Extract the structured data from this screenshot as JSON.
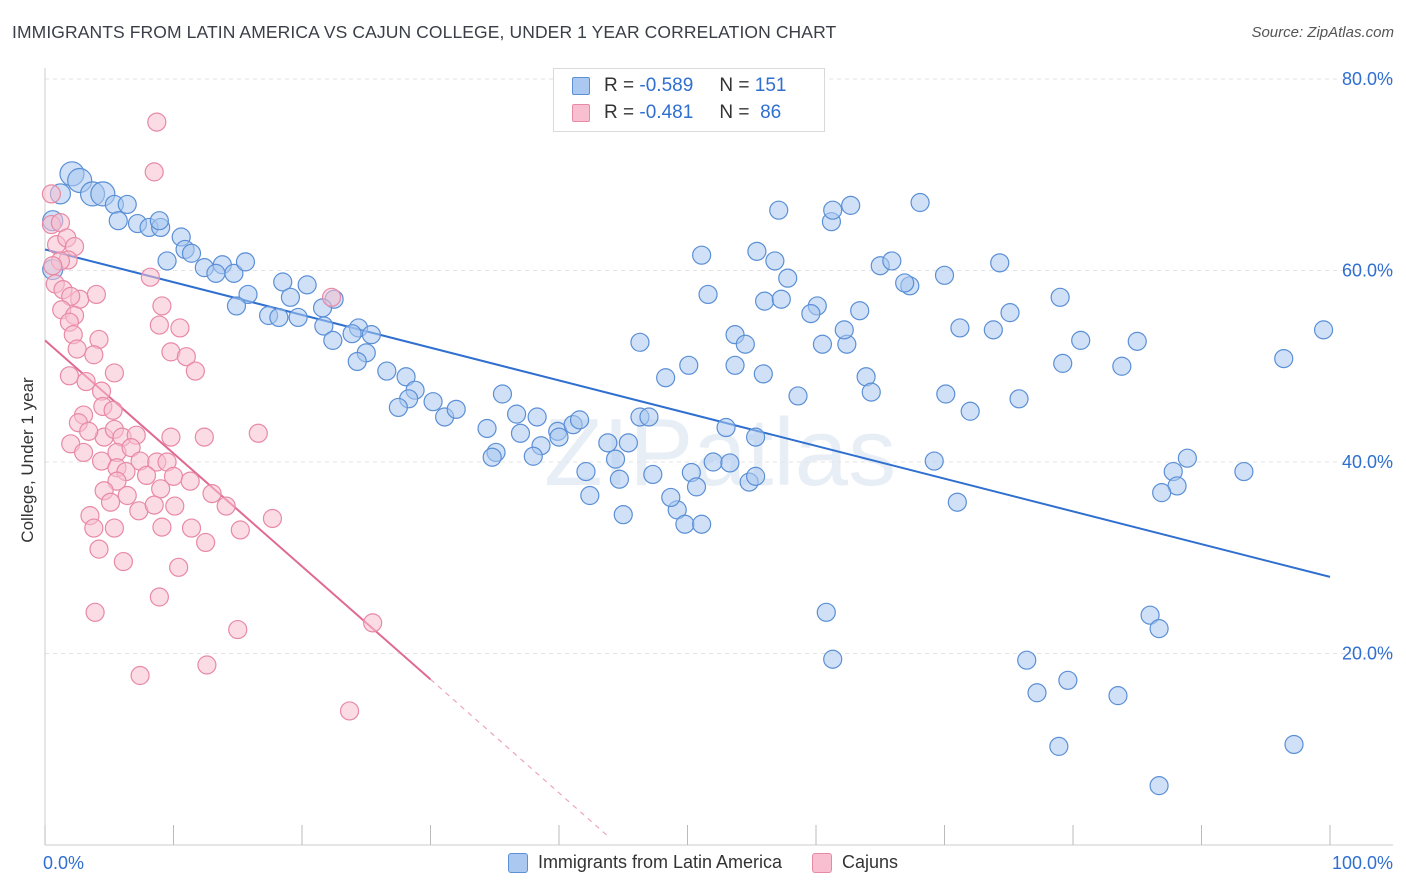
{
  "header": {
    "title": "IMMIGRANTS FROM LATIN AMERICA VS CAJUN COLLEGE, UNDER 1 YEAR CORRELATION CHART",
    "source": "Source: ZipAtlas.com"
  },
  "legend": {
    "rows": [
      {
        "r_label": "R =",
        "r_value": "-0.589",
        "n_label": "N =",
        "n_value": "151"
      },
      {
        "r_label": "R =",
        "r_value": "-0.481",
        "n_label": "N =",
        "n_value": "86"
      }
    ]
  },
  "bottom_legend": [
    "Immigrants from Latin America",
    "Cajuns"
  ],
  "watermark": "ZIPatlas",
  "colors": {
    "blue_fill": "#aac8f0",
    "blue_stroke": "#5b8fd6",
    "blue_line": "#2f6fd0",
    "pink_fill": "#f7bfd0",
    "pink_stroke": "#e889a6",
    "pink_line": "#e06a93",
    "axis_text": "#2f6fd0"
  },
  "chart_data": {
    "type": "scatter",
    "title": "IMMIGRANTS FROM LATIN AMERICA VS CAJUN COLLEGE, UNDER 1 YEAR CORRELATION CHART",
    "xlabel": "",
    "ylabel": "College, Under 1 year",
    "xlim": [
      0,
      100
    ],
    "ylim": [
      0,
      80
    ],
    "x_tick_labels": [
      "0.0%",
      "100.0%"
    ],
    "y_tick_labels": [
      "20.0%",
      "40.0%",
      "60.0%",
      "80.0%"
    ],
    "y_ticks": [
      20,
      40,
      60,
      80
    ],
    "grid": true,
    "series": [
      {
        "name": "Immigrants from Latin America",
        "R": -0.589,
        "N": 151,
        "trend": {
          "x": [
            0,
            100
          ],
          "y": [
            62.2,
            28.0
          ]
        },
        "points": [
          [
            0.6,
            65.2
          ],
          [
            0.6,
            60.1
          ],
          [
            1.2,
            68.0
          ],
          [
            2.1,
            70.1
          ],
          [
            2.7,
            69.4
          ],
          [
            3.7,
            68.0
          ],
          [
            4.5,
            68.0
          ],
          [
            5.4,
            66.9
          ],
          [
            6.4,
            66.9
          ],
          [
            5.7,
            65.2
          ],
          [
            7.2,
            64.9
          ],
          [
            8.1,
            64.5
          ],
          [
            9.0,
            64.5
          ],
          [
            10.6,
            63.5
          ],
          [
            8.9,
            65.2
          ],
          [
            10.9,
            62.2
          ],
          [
            11.4,
            61.8
          ],
          [
            9.5,
            61.0
          ],
          [
            12.4,
            60.3
          ],
          [
            13.8,
            60.6
          ],
          [
            14.7,
            59.7
          ],
          [
            15.6,
            60.9
          ],
          [
            13.3,
            59.7
          ],
          [
            18.5,
            58.8
          ],
          [
            15.8,
            57.5
          ],
          [
            20.4,
            58.5
          ],
          [
            19.1,
            57.2
          ],
          [
            14.9,
            56.3
          ],
          [
            22.5,
            57.0
          ],
          [
            21.6,
            56.1
          ],
          [
            17.4,
            55.3
          ],
          [
            18.2,
            55.1
          ],
          [
            19.7,
            55.1
          ],
          [
            21.7,
            54.2
          ],
          [
            24.4,
            54.0
          ],
          [
            23.9,
            53.4
          ],
          [
            22.4,
            52.7
          ],
          [
            25.4,
            53.3
          ],
          [
            25.0,
            51.4
          ],
          [
            24.3,
            50.5
          ],
          [
            26.6,
            49.5
          ],
          [
            28.1,
            48.9
          ],
          [
            28.8,
            47.5
          ],
          [
            30.2,
            46.3
          ],
          [
            28.3,
            46.6
          ],
          [
            31.1,
            44.7
          ],
          [
            27.5,
            45.7
          ],
          [
            32.0,
            45.5
          ],
          [
            35.6,
            47.1
          ],
          [
            36.7,
            45.0
          ],
          [
            34.4,
            43.5
          ],
          [
            37.0,
            43.0
          ],
          [
            38.3,
            44.7
          ],
          [
            38.6,
            41.7
          ],
          [
            35.1,
            41.0
          ],
          [
            34.8,
            40.5
          ],
          [
            38.0,
            40.6
          ],
          [
            42.1,
            39.0
          ],
          [
            39.9,
            43.2
          ],
          [
            40.0,
            42.6
          ],
          [
            41.1,
            43.9
          ],
          [
            41.6,
            44.4
          ],
          [
            43.8,
            42.0
          ],
          [
            44.4,
            40.3
          ],
          [
            45.4,
            42.0
          ],
          [
            46.3,
            44.7
          ],
          [
            47.0,
            44.7
          ],
          [
            44.7,
            38.2
          ],
          [
            42.4,
            36.5
          ],
          [
            45.0,
            34.5
          ],
          [
            47.3,
            38.7
          ],
          [
            49.2,
            35.0
          ],
          [
            48.7,
            36.3
          ],
          [
            50.3,
            38.9
          ],
          [
            50.7,
            37.4
          ],
          [
            52.0,
            40.0
          ],
          [
            49.8,
            33.5
          ],
          [
            51.1,
            33.5
          ],
          [
            53.3,
            39.9
          ],
          [
            54.8,
            37.9
          ],
          [
            53.0,
            43.6
          ],
          [
            55.3,
            38.5
          ],
          [
            48.3,
            48.8
          ],
          [
            46.3,
            52.5
          ],
          [
            50.1,
            50.1
          ],
          [
            51.1,
            61.6
          ],
          [
            53.7,
            50.1
          ],
          [
            51.6,
            57.5
          ],
          [
            53.7,
            53.3
          ],
          [
            55.9,
            49.2
          ],
          [
            55.3,
            42.6
          ],
          [
            54.5,
            52.3
          ],
          [
            56.0,
            56.8
          ],
          [
            57.8,
            59.2
          ],
          [
            55.4,
            62.0
          ],
          [
            57.1,
            66.3
          ],
          [
            61.2,
            65.1
          ],
          [
            60.1,
            56.3
          ],
          [
            56.8,
            61.0
          ],
          [
            57.3,
            57.0
          ],
          [
            58.6,
            46.9
          ],
          [
            59.6,
            55.5
          ],
          [
            60.5,
            52.3
          ],
          [
            62.4,
            52.3
          ],
          [
            63.4,
            55.8
          ],
          [
            60.8,
            24.3
          ],
          [
            61.3,
            19.4
          ],
          [
            62.2,
            53.8
          ],
          [
            63.9,
            48.9
          ],
          [
            67.3,
            58.4
          ],
          [
            70.0,
            59.5
          ],
          [
            65.0,
            60.5
          ],
          [
            61.3,
            66.3
          ],
          [
            62.7,
            66.8
          ],
          [
            64.3,
            47.3
          ],
          [
            65.9,
            61.0
          ],
          [
            66.9,
            58.7
          ],
          [
            68.1,
            67.1
          ],
          [
            69.2,
            40.1
          ],
          [
            70.1,
            47.1
          ],
          [
            71.2,
            54.0
          ],
          [
            71.0,
            35.8
          ],
          [
            72.0,
            45.3
          ],
          [
            73.8,
            53.8
          ],
          [
            75.1,
            55.6
          ],
          [
            75.8,
            46.6
          ],
          [
            79.2,
            50.3
          ],
          [
            80.6,
            52.7
          ],
          [
            83.8,
            50.0
          ],
          [
            85.0,
            52.6
          ],
          [
            87.8,
            39.0
          ],
          [
            88.1,
            37.5
          ],
          [
            88.9,
            40.4
          ],
          [
            86.9,
            36.8
          ],
          [
            93.3,
            39.0
          ],
          [
            96.4,
            50.8
          ],
          [
            79.0,
            57.2
          ],
          [
            74.3,
            60.8
          ],
          [
            86.0,
            24.0
          ],
          [
            76.4,
            19.3
          ],
          [
            79.6,
            17.2
          ],
          [
            77.2,
            15.9
          ],
          [
            86.7,
            22.6
          ],
          [
            83.5,
            15.6
          ],
          [
            97.2,
            10.5
          ],
          [
            78.9,
            10.3
          ],
          [
            86.7,
            6.2
          ],
          [
            99.5,
            53.8
          ]
        ]
      },
      {
        "name": "Cajuns",
        "R": -0.481,
        "N": 86,
        "trend": {
          "x": [
            0,
            30
          ],
          "y": [
            52.7,
            17.3
          ]
        },
        "trend_dashed": {
          "x": [
            30,
            44
          ],
          "y": [
            17.3,
            0.7
          ]
        },
        "points": [
          [
            0.5,
            68.0
          ],
          [
            0.5,
            64.8
          ],
          [
            1.2,
            65.0
          ],
          [
            0.9,
            62.7
          ],
          [
            1.7,
            63.4
          ],
          [
            2.3,
            62.5
          ],
          [
            1.8,
            61.1
          ],
          [
            1.2,
            61.0
          ],
          [
            0.6,
            60.5
          ],
          [
            0.8,
            58.6
          ],
          [
            1.4,
            58.0
          ],
          [
            2.7,
            57.0
          ],
          [
            2.0,
            57.3
          ],
          [
            4.0,
            57.5
          ],
          [
            1.3,
            55.9
          ],
          [
            2.3,
            55.3
          ],
          [
            1.9,
            54.6
          ],
          [
            2.2,
            53.3
          ],
          [
            4.2,
            52.8
          ],
          [
            2.5,
            51.8
          ],
          [
            3.8,
            51.2
          ],
          [
            1.9,
            49.0
          ],
          [
            3.2,
            48.4
          ],
          [
            4.4,
            47.4
          ],
          [
            5.4,
            49.3
          ],
          [
            4.5,
            45.8
          ],
          [
            5.3,
            45.4
          ],
          [
            3.0,
            44.9
          ],
          [
            2.6,
            44.1
          ],
          [
            4.6,
            42.6
          ],
          [
            3.4,
            43.2
          ],
          [
            5.4,
            43.4
          ],
          [
            6.0,
            42.6
          ],
          [
            2.0,
            41.9
          ],
          [
            3.0,
            41.0
          ],
          [
            4.4,
            40.1
          ],
          [
            5.6,
            41.0
          ],
          [
            7.1,
            42.8
          ],
          [
            6.7,
            41.5
          ],
          [
            9.8,
            42.6
          ],
          [
            12.4,
            42.6
          ],
          [
            7.4,
            40.1
          ],
          [
            8.7,
            40.0
          ],
          [
            9.5,
            40.0
          ],
          [
            5.6,
            39.4
          ],
          [
            6.3,
            39.0
          ],
          [
            5.6,
            38.0
          ],
          [
            7.9,
            38.6
          ],
          [
            10.0,
            38.5
          ],
          [
            11.3,
            38.0
          ],
          [
            4.6,
            37.0
          ],
          [
            6.4,
            36.5
          ],
          [
            9.0,
            37.2
          ],
          [
            13.0,
            36.7
          ],
          [
            5.1,
            35.8
          ],
          [
            3.5,
            34.4
          ],
          [
            7.3,
            34.9
          ],
          [
            8.5,
            35.5
          ],
          [
            10.1,
            35.4
          ],
          [
            14.1,
            35.4
          ],
          [
            3.8,
            33.1
          ],
          [
            5.4,
            33.1
          ],
          [
            9.1,
            33.2
          ],
          [
            11.4,
            33.1
          ],
          [
            15.2,
            32.9
          ],
          [
            17.7,
            34.1
          ],
          [
            12.5,
            31.6
          ],
          [
            4.2,
            30.9
          ],
          [
            6.1,
            29.6
          ],
          [
            10.4,
            29.0
          ],
          [
            8.9,
            25.9
          ],
          [
            3.9,
            24.3
          ],
          [
            15.0,
            22.5
          ],
          [
            25.5,
            23.2
          ],
          [
            7.4,
            17.7
          ],
          [
            12.6,
            18.8
          ],
          [
            23.7,
            14.0
          ],
          [
            8.2,
            59.3
          ],
          [
            8.9,
            54.3
          ],
          [
            9.1,
            56.3
          ],
          [
            10.5,
            54.0
          ],
          [
            9.8,
            51.5
          ],
          [
            11.0,
            51.0
          ],
          [
            11.7,
            49.5
          ],
          [
            16.6,
            43.0
          ],
          [
            22.3,
            57.2
          ],
          [
            8.7,
            75.5
          ],
          [
            8.5,
            70.3
          ]
        ]
      }
    ]
  }
}
